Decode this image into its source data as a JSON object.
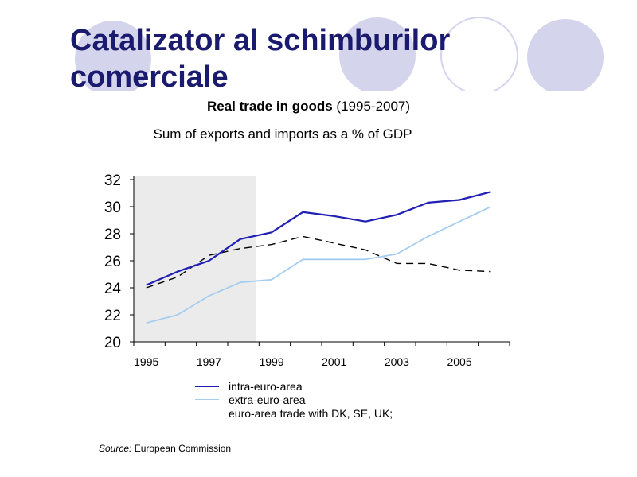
{
  "slide": {
    "title_line1": "Catalizator al schimburilor",
    "title_line2": "comerciale"
  },
  "colors": {
    "title": "#1a1a6e",
    "decor_circle": "#d4d4ec",
    "shaded_band": "#ebebeb",
    "intra": "#1f1fb4",
    "extra": "#a4cdf0",
    "dk_se_uk": "#000000"
  },
  "source": {
    "label": "Source:",
    "text": "European Commission"
  },
  "chart_data": {
    "type": "line",
    "title_bold": "Real trade in goods",
    "title_years": "(1995-2007)",
    "subtitle": "Sum of exports and imports as a % of GDP",
    "xlabel": "",
    "ylabel": "",
    "x": [
      1995,
      1996,
      1997,
      1998,
      1999,
      2000,
      2001,
      2002,
      2003,
      2004,
      2005,
      2006
    ],
    "xlim": [
      1994.6,
      2006.6
    ],
    "x_tick_labels": [
      "1995",
      "1997",
      "1999",
      "2001",
      "2003",
      "2005"
    ],
    "ylim": [
      20,
      32
    ],
    "y_ticks": [
      20,
      22,
      24,
      26,
      28,
      30,
      32
    ],
    "shaded_range": [
      1994.6,
      1998.5
    ],
    "grid": false,
    "legend_position": "bottom",
    "series": [
      {
        "name": "intra-euro-area",
        "style": "solid",
        "values": [
          24.2,
          25.2,
          26.0,
          27.6,
          28.1,
          29.6,
          29.3,
          28.9,
          29.4,
          30.3,
          30.5,
          31.1
        ]
      },
      {
        "name": "extra-euro-area",
        "style": "solid",
        "values": [
          21.4,
          22.0,
          23.4,
          24.4,
          24.6,
          26.1,
          26.1,
          26.1,
          26.5,
          27.8,
          28.9,
          30.0
        ]
      },
      {
        "name": "euro-area trade with DK, SE, UK;",
        "style": "dashed",
        "values": [
          24.0,
          24.8,
          26.4,
          26.9,
          27.2,
          27.8,
          27.3,
          26.8,
          25.8,
          25.8,
          25.3,
          25.2
        ]
      }
    ]
  }
}
